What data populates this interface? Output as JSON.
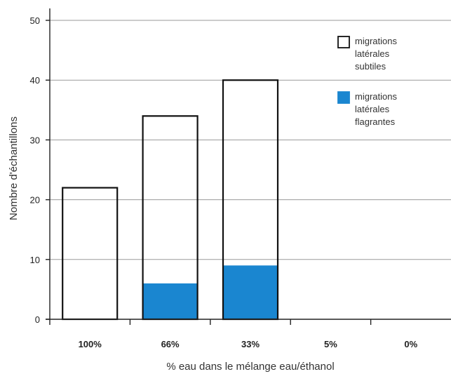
{
  "chart_data": {
    "type": "bar",
    "stacked": true,
    "categories": [
      "100%",
      "66%",
      "33%",
      "5%",
      "0%"
    ],
    "series": [
      {
        "name": "migrations latérales flagrantes",
        "values": [
          0,
          6,
          9,
          0,
          0
        ],
        "color": "#1a86d0"
      },
      {
        "name": "migrations latérales subtiles",
        "values": [
          22,
          28,
          31,
          0,
          0
        ],
        "color": "#ffffff"
      }
    ],
    "totals": [
      22,
      34,
      40,
      0,
      0
    ],
    "xlabel": "% eau dans le mélange eau/éthanol",
    "ylabel": "Nombre d'échantillons",
    "ylim": [
      0,
      50
    ],
    "yticks": [
      0,
      10,
      20,
      30,
      40,
      50
    ],
    "grid": true,
    "legend": {
      "placement": "top-right",
      "entries": [
        {
          "lines": [
            "migrations",
            "latérales",
            "subtiles"
          ],
          "fill": "#ffffff",
          "stroke": "#111111"
        },
        {
          "lines": [
            "migrations",
            "latérales",
            "flagrantes"
          ],
          "fill": "#1a86d0",
          "stroke": "#1a86d0"
        }
      ]
    }
  }
}
